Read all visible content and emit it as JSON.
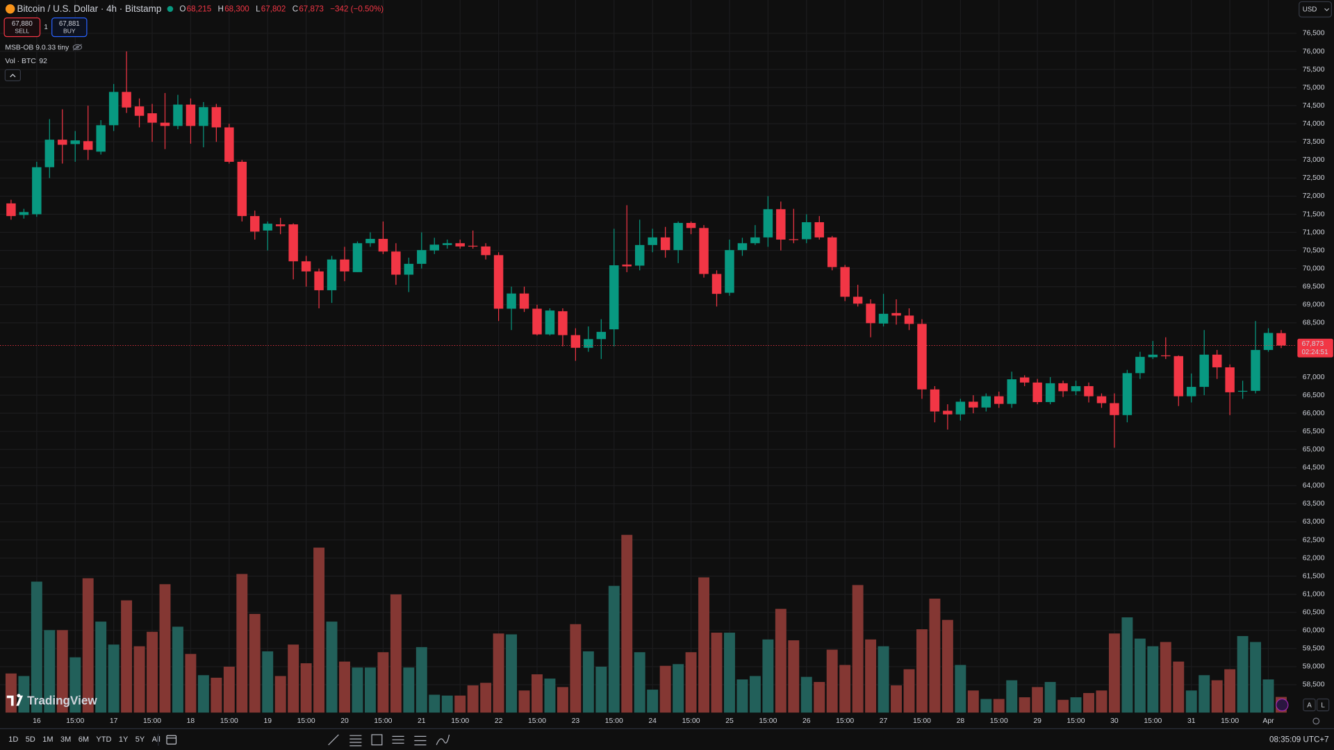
{
  "header": {
    "symbol": "Bitcoin / U.S. Dollar · 4h · Bitstamp",
    "ohlc": [
      {
        "key": "O",
        "value": "68,215"
      },
      {
        "key": "H",
        "value": "68,300"
      },
      {
        "key": "L",
        "value": "67,802"
      },
      {
        "key": "C",
        "value": "67,873"
      }
    ],
    "change": "−342 (−0.50%)"
  },
  "trade": {
    "sell_price": "67,880",
    "sell": "SELL",
    "qty": "1",
    "buy_price": "67,881",
    "buy": "BUY"
  },
  "indicator": "MSB-OB 9.0.33 tiny",
  "volume_legend": "Vol · BTC",
  "currency": "USD",
  "ranges": [
    "1D",
    "5D",
    "1M",
    "3M",
    "6M",
    "YTD",
    "1Y",
    "5Y",
    "All"
  ],
  "clock": "08:35:09 UTC+7",
  "brand": "TradingView",
  "scale_buttons": [
    "A",
    "L"
  ],
  "chart_data": {
    "type": "candlestick",
    "categories": [
      null,
      null,
      "16",
      null,
      null,
      "15:00",
      null,
      null,
      "17",
      null,
      null,
      "15:00",
      null,
      null,
      "18",
      null,
      null,
      "15:00",
      null,
      null,
      "19",
      null,
      null,
      "15:00",
      null,
      null,
      "20",
      null,
      null,
      "15:00",
      null,
      null,
      "21",
      null,
      null,
      "15:00",
      null,
      null,
      "22",
      null,
      null,
      "15:00",
      null,
      null,
      "23",
      null,
      null,
      "15:00",
      null,
      null,
      "24",
      null,
      null,
      "15:00",
      null,
      null,
      "25",
      null,
      null,
      "15:00",
      null,
      null,
      "26",
      null,
      null,
      "15:00",
      null,
      null,
      "27",
      null,
      null,
      "15:00",
      null,
      null,
      "28",
      null,
      null,
      "15:00",
      null,
      null,
      "29",
      null,
      null,
      "15:00",
      null,
      null,
      "30",
      null,
      null,
      "15:00",
      null,
      null,
      "31",
      null,
      null,
      "15:00",
      null,
      null,
      "Apr",
      null
    ],
    "open": [
      71800,
      71480,
      71500,
      72800,
      73560,
      73440,
      73520,
      73230,
      73960,
      74880,
      74480,
      74290,
      74030,
      73940,
      74530,
      73940,
      74460,
      73900,
      72950,
      71450,
      71050,
      71220,
      71220,
      70200,
      69920,
      69400,
      70250,
      69900,
      70700,
      70820,
      70470,
      69830,
      70130,
      70500,
      70650,
      70700,
      70630,
      70610,
      70370,
      68890,
      69310,
      68890,
      68180,
      68820,
      68160,
      67810,
      68050,
      68320,
      70110,
      70080,
      70650,
      70860,
      70510,
      71260,
      71120,
      69850,
      69330,
      70510,
      70700,
      70860,
      71640,
      70810,
      70810,
      71280,
      70860,
      70040,
      69220,
      69030,
      68480,
      68770,
      68700,
      68470,
      66660,
      66070,
      65970,
      66320,
      66160,
      66470,
      66260,
      66990,
      66850,
      66310,
      66830,
      66610,
      66750,
      66470,
      66280,
      65950,
      67110,
      67550,
      67600,
      67580,
      66470,
      66730,
      67620,
      67270,
      66600,
      66620,
      67750,
      68215
    ],
    "high": [
      71900,
      71650,
      72950,
      74130,
      74400,
      73800,
      74500,
      74100,
      75100,
      76000,
      74700,
      74550,
      74850,
      74800,
      74700,
      74600,
      74550,
      74000,
      73000,
      71600,
      71300,
      71400,
      71250,
      70350,
      70000,
      70350,
      70600,
      70750,
      71000,
      71300,
      70700,
      70300,
      71000,
      70850,
      70800,
      70800,
      71050,
      70700,
      70450,
      69500,
      69500,
      69000,
      68900,
      68900,
      68350,
      68400,
      68600,
      71100,
      71750,
      71350,
      71100,
      71150,
      71300,
      71300,
      71200,
      69950,
      70800,
      70850,
      71200,
      72000,
      71850,
      71650,
      71500,
      71450,
      70900,
      70100,
      69550,
      69150,
      69300,
      69150,
      68900,
      68600,
      66750,
      66250,
      66400,
      66500,
      66550,
      66600,
      67150,
      67050,
      66950,
      67000,
      66900,
      66900,
      66850,
      66550,
      66550,
      67200,
      67700,
      68000,
      68100,
      67600,
      67100,
      68300,
      67750,
      67350,
      66900,
      68550,
      68350,
      68300
    ],
    "low": [
      71350,
      71380,
      71430,
      72500,
      72900,
      72950,
      73000,
      73150,
      73800,
      74300,
      73900,
      73500,
      73300,
      73850,
      73450,
      73350,
      73500,
      72900,
      71300,
      70800,
      70500,
      70950,
      69700,
      69500,
      68900,
      69050,
      69650,
      69900,
      70600,
      70400,
      69550,
      69350,
      70000,
      70400,
      70550,
      70550,
      70550,
      70250,
      68550,
      68300,
      68800,
      68150,
      68150,
      67850,
      67450,
      67700,
      67500,
      67850,
      69900,
      69950,
      70450,
      70300,
      70150,
      70950,
      69750,
      68950,
      69250,
      70350,
      70650,
      70600,
      70500,
      70700,
      70700,
      70800,
      69950,
      69100,
      68950,
      68100,
      68400,
      68450,
      68300,
      66400,
      65750,
      65550,
      65800,
      66000,
      66050,
      66150,
      66150,
      66750,
      66250,
      66250,
      66450,
      66500,
      66300,
      66150,
      65050,
      65750,
      66950,
      67500,
      67500,
      66200,
      66300,
      66500,
      66950,
      65950,
      66400,
      66550,
      67700,
      67802
    ],
    "close": [
      71450,
      71560,
      72800,
      73560,
      73420,
      73540,
      73280,
      73960,
      74880,
      74450,
      74220,
      74030,
      73940,
      74530,
      73940,
      74460,
      73900,
      72950,
      71450,
      71020,
      71240,
      71170,
      70200,
      69920,
      69400,
      70250,
      69920,
      70700,
      70820,
      70470,
      69830,
      70130,
      70510,
      70660,
      70700,
      70610,
      70620,
      70370,
      68890,
      69310,
      68890,
      68180,
      68840,
      68160,
      67810,
      68050,
      68250,
      70090,
      70060,
      70650,
      70860,
      70510,
      71260,
      71120,
      69850,
      69300,
      70510,
      70700,
      70860,
      71640,
      70800,
      70790,
      71280,
      70860,
      70040,
      69220,
      69030,
      68490,
      68750,
      68700,
      68470,
      66660,
      66050,
      65970,
      66320,
      66160,
      66470,
      66260,
      66940,
      66850,
      66310,
      66830,
      66610,
      66750,
      66470,
      66280,
      65950,
      67110,
      67560,
      67620,
      67580,
      66470,
      66730,
      67620,
      67270,
      66580,
      66620,
      67750,
      68220,
      67873
    ],
    "volume": [
      230,
      215,
      770,
      485,
      485,
      325,
      790,
      535,
      400,
      660,
      390,
      475,
      755,
      505,
      345,
      220,
      205,
      270,
      815,
      580,
      360,
      215,
      400,
      290,
      970,
      535,
      300,
      265,
      265,
      355,
      695,
      265,
      385,
      105,
      100,
      100,
      160,
      175,
      465,
      460,
      130,
      225,
      200,
      150,
      520,
      360,
      270,
      745,
      1045,
      355,
      135,
      275,
      285,
      355,
      795,
      470,
      470,
      195,
      215,
      430,
      610,
      425,
      210,
      180,
      370,
      280,
      750,
      430,
      390,
      160,
      255,
      490,
      670,
      545,
      280,
      130,
      80,
      80,
      190,
      90,
      150,
      180,
      75,
      90,
      115,
      130,
      465,
      560,
      435,
      390,
      415,
      300,
      130,
      220,
      190,
      255,
      450,
      415,
      195,
      92
    ],
    "last_price_label": "67,873",
    "countdown": "02:24:51",
    "up_color": "#089981",
    "down_color": "#f23645",
    "volume_up_color": "#22605a",
    "volume_down_color": "#843733",
    "ylim": [
      57730,
      77420
    ],
    "yticks": [
      {
        "value": 58500,
        "label": "58,500"
      },
      {
        "value": 59000,
        "label": "59,000"
      },
      {
        "value": 59500,
        "label": "59,500"
      },
      {
        "value": 60000,
        "label": "60,000"
      },
      {
        "value": 60500,
        "label": "60,500"
      },
      {
        "value": 61000,
        "label": "61,000"
      },
      {
        "value": 61500,
        "label": "61,500"
      },
      {
        "value": 62000,
        "label": "62,000"
      },
      {
        "value": 62500,
        "label": "62,500"
      },
      {
        "value": 63000,
        "label": "63,000"
      },
      {
        "value": 63500,
        "label": "63,500"
      },
      {
        "value": 64000,
        "label": "64,000"
      },
      {
        "value": 64500,
        "label": "64,500"
      },
      {
        "value": 65000,
        "label": "65,000"
      },
      {
        "value": 65500,
        "label": "65,500"
      },
      {
        "value": 66000,
        "label": "66,000"
      },
      {
        "value": 66500,
        "label": "66,500"
      },
      {
        "value": 67000,
        "label": "67,000"
      },
      {
        "value": 68500,
        "label": "68,500"
      },
      {
        "value": 69000,
        "label": "69,000"
      },
      {
        "value": 69500,
        "label": "69,500"
      },
      {
        "value": 70000,
        "label": "70,000"
      },
      {
        "value": 70500,
        "label": "70,500"
      },
      {
        "value": 71000,
        "label": "71,000"
      },
      {
        "value": 71500,
        "label": "71,500"
      },
      {
        "value": 72000,
        "label": "72,000"
      },
      {
        "value": 72500,
        "label": "72,500"
      },
      {
        "value": 73000,
        "label": "73,000"
      },
      {
        "value": 73500,
        "label": "73,500"
      },
      {
        "value": 74000,
        "label": "74,000"
      },
      {
        "value": 74500,
        "label": "74,500"
      },
      {
        "value": 75000,
        "label": "75,000"
      },
      {
        "value": 75500,
        "label": "75,500"
      },
      {
        "value": 76000,
        "label": "76,000"
      },
      {
        "value": 76500,
        "label": "76,500"
      }
    ],
    "grid": true
  }
}
